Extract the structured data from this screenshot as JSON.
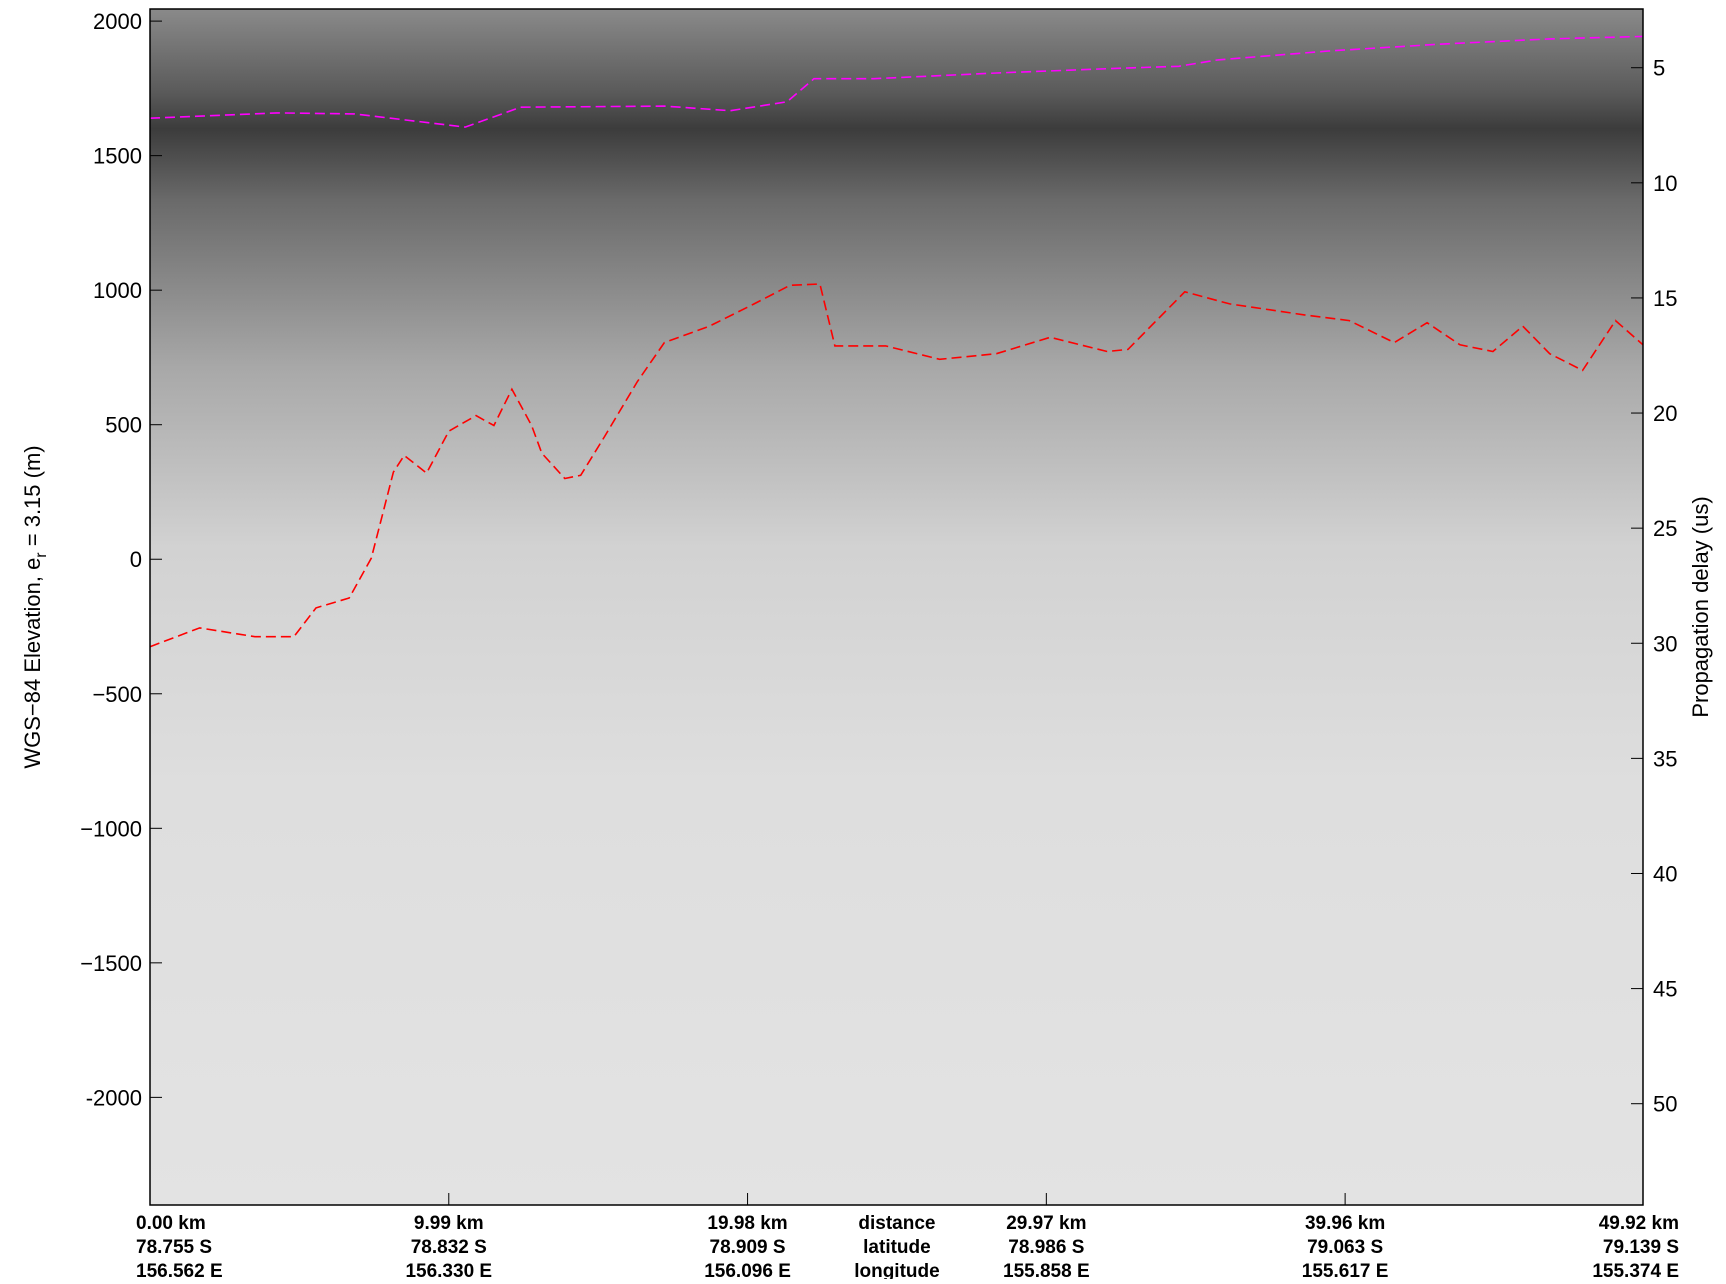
{
  "chart_data": {
    "type": "line",
    "ylabel": {
      "text": "WGS−84 Elevation, e",
      "subscript": "r",
      "rest": " = 3.15 (m)"
    },
    "y2label": "Propagation delay (us)",
    "ylim": [
      -2400,
      2045
    ],
    "yticks": [
      -2000,
      {
        "value": -1500,
        "label": "−1500"
      },
      {
        "value": -1000,
        "label": "−1000"
      },
      {
        "value": -500,
        "label": "−500"
      },
      0,
      500,
      1000,
      1500,
      2000
    ],
    "y2lim": [
      54.4,
      2.45
    ],
    "y2ticks": [
      5,
      10,
      15,
      20,
      25,
      30,
      35,
      40,
      45,
      50
    ],
    "xlim": [
      0,
      49.92
    ],
    "xticks": [
      {
        "value": 0,
        "label": "0.00 km"
      },
      {
        "value": 9.99,
        "label": "9.99 km"
      },
      {
        "value": 19.98,
        "label": "19.98 km"
      },
      {
        "value": 29.97,
        "label": "29.97 km"
      },
      {
        "value": 39.96,
        "label": "39.96 km"
      },
      {
        "value": 49.92,
        "label": "49.92 km"
      }
    ],
    "latitude": [
      "78.755 S",
      "78.832 S",
      "78.909 S",
      "78.986 S",
      "79.063 S",
      "79.139 S"
    ],
    "longitude": [
      "156.562 E",
      "156.330 E",
      "156.096 E",
      "155.858 E",
      "155.617 E",
      "155.374 E"
    ],
    "row_labels": [
      "distance",
      "latitude",
      "longitude"
    ],
    "series": [
      {
        "color": "#ff00ff",
        "x": [
          0,
          4.25,
          6.84,
          10.54,
          12.39,
          17.2,
          19.4,
          21.3,
          22.2,
          24.2,
          28.3,
          32.0,
          34.4,
          35.7,
          39.4,
          43.1,
          46.8,
          49.92
        ],
        "values": [
          1639,
          1659,
          1655,
          1606,
          1680,
          1684,
          1667,
          1700,
          1786,
          1786,
          1807,
          1823,
          1832,
          1856,
          1889,
          1914,
          1934,
          1943
        ]
      },
      {
        "color": "#ff0000",
        "x": [
          0,
          1.66,
          3.51,
          4.81,
          5.55,
          6.66,
          7.4,
          8.14,
          8.5,
          9.25,
          9.99,
          10.9,
          11.5,
          12.1,
          12.76,
          13.1,
          13.87,
          14.4,
          15.2,
          16.3,
          17.2,
          18.7,
          20.2,
          21.4,
          22.4,
          22.9,
          24.6,
          26.4,
          28.3,
          30.1,
          32.0,
          32.7,
          34.6,
          36.1,
          38.6,
          40.1,
          41.6,
          42.7,
          43.8,
          44.9,
          45.9,
          46.8,
          47.9,
          49.0,
          49.92
        ],
        "values": [
          -325,
          -255,
          -288,
          -288,
          -181,
          -144,
          4,
          324,
          386,
          320,
          476,
          534,
          497,
          632,
          497,
          394,
          300,
          312,
          456,
          661,
          805,
          866,
          949,
          1018,
          1023,
          793,
          793,
          743,
          764,
          825,
          772,
          780,
          994,
          949,
          908,
          887,
          805,
          879,
          797,
          772,
          866,
          764,
          702,
          887,
          797
        ]
      }
    ]
  }
}
